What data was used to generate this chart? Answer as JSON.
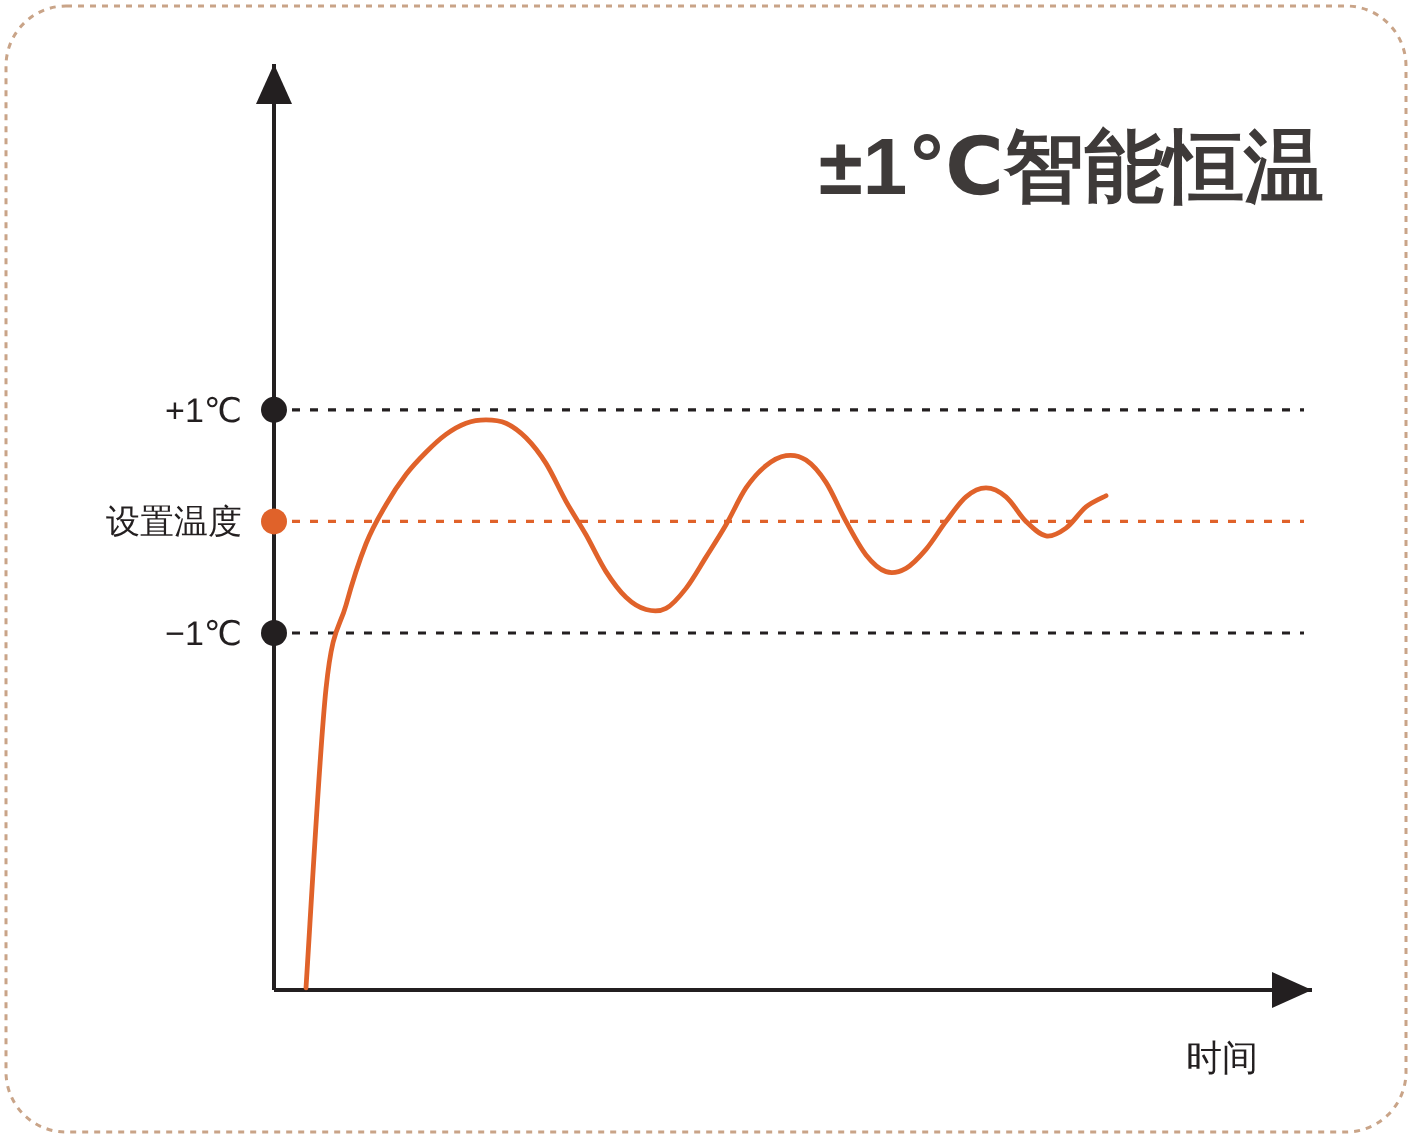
{
  "chart_data": {
    "type": "line",
    "title": "±1℃智能恒温",
    "xlabel": "时间",
    "categories": [
      null,
      null,
      null,
      null,
      null,
      null,
      null,
      null,
      null,
      null,
      null,
      null,
      null,
      null,
      null,
      null,
      null,
      null,
      null,
      null,
      null,
      null,
      null,
      null,
      null,
      null,
      null,
      null,
      null,
      null,
      null,
      null,
      null,
      null,
      null,
      null,
      null,
      null,
      null,
      null,
      null
    ],
    "series": [
      {
        "color": "#e0622a",
        "values": [
          -4.18,
          -1.5,
          -0.75,
          -0.2,
          0.15,
          0.42,
          0.62,
          0.78,
          0.88,
          0.91,
          0.88,
          0.75,
          0.52,
          0.18,
          -0.12,
          -0.45,
          -0.68,
          -0.79,
          -0.78,
          -0.6,
          -0.32,
          -0.03,
          0.3,
          0.5,
          0.59,
          0.55,
          0.35,
          0.0,
          -0.3,
          -0.45,
          -0.42,
          -0.25,
          0.0,
          0.22,
          0.3,
          0.22,
          0.0,
          -0.13,
          -0.06,
          0.13,
          0.23
        ]
      }
    ],
    "ylim": [
      -4.2,
      4.1
    ],
    "yticks": [
      {
        "value": 1,
        "label": "+1℃"
      },
      {
        "value": 0,
        "label": "设置温度"
      },
      {
        "value": -1,
        "label": "−1℃"
      }
    ],
    "ref_lines": [
      {
        "axis": "y",
        "value": 1,
        "color": "#231f20",
        "line_style": "dashed"
      },
      {
        "axis": "y",
        "value": 0,
        "color": "#e0622a",
        "line_style": "dashed"
      },
      {
        "axis": "y",
        "value": -1,
        "color": "#231f20",
        "line_style": "dashed"
      }
    ]
  }
}
